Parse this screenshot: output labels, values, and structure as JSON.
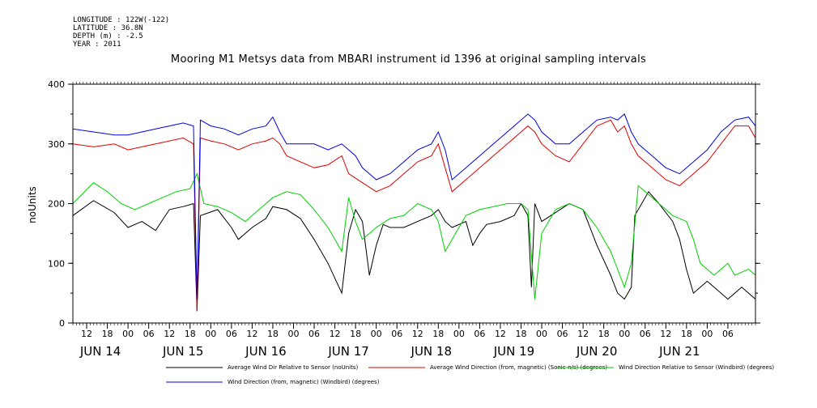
{
  "metadata": {
    "longitude": "LONGITUDE : 122W(-122)",
    "latitude": "LATITUDE : 36.8N",
    "depth": "DEPTH (m) : -2.5",
    "year": "YEAR : 2011"
  },
  "chart_data": {
    "type": "line",
    "title": "Mooring M1 Metsys data from MBARI instrument id 1396 at original sampling intervals",
    "ylabel": "noUnits",
    "xlabel": "",
    "ylim": [
      0,
      400
    ],
    "yticks": [
      0,
      100,
      200,
      300,
      400
    ],
    "xlim": [
      0,
      198
    ],
    "hour_ticks": [
      {
        "x": 4,
        "label": "12"
      },
      {
        "x": 10,
        "label": "18"
      },
      {
        "x": 16,
        "label": "00"
      },
      {
        "x": 22,
        "label": "06"
      },
      {
        "x": 28,
        "label": "12"
      },
      {
        "x": 34,
        "label": "18"
      },
      {
        "x": 40,
        "label": "00"
      },
      {
        "x": 46,
        "label": "06"
      },
      {
        "x": 52,
        "label": "12"
      },
      {
        "x": 58,
        "label": "18"
      },
      {
        "x": 64,
        "label": "00"
      },
      {
        "x": 70,
        "label": "06"
      },
      {
        "x": 76,
        "label": "12"
      },
      {
        "x": 82,
        "label": "18"
      },
      {
        "x": 88,
        "label": "00"
      },
      {
        "x": 94,
        "label": "06"
      },
      {
        "x": 100,
        "label": "12"
      },
      {
        "x": 106,
        "label": "18"
      },
      {
        "x": 112,
        "label": "00"
      },
      {
        "x": 118,
        "label": "06"
      },
      {
        "x": 124,
        "label": "12"
      },
      {
        "x": 130,
        "label": "18"
      },
      {
        "x": 136,
        "label": "00"
      },
      {
        "x": 142,
        "label": "06"
      },
      {
        "x": 148,
        "label": "12"
      },
      {
        "x": 154,
        "label": "18"
      },
      {
        "x": 160,
        "label": "00"
      },
      {
        "x": 166,
        "label": "06"
      },
      {
        "x": 172,
        "label": "12"
      },
      {
        "x": 178,
        "label": "18"
      },
      {
        "x": 184,
        "label": "00"
      },
      {
        "x": 190,
        "label": "06"
      }
    ],
    "day_ticks": [
      {
        "x": 8,
        "label": "JUN 14"
      },
      {
        "x": 32,
        "label": "JUN 15"
      },
      {
        "x": 56,
        "label": "JUN 16"
      },
      {
        "x": 80,
        "label": "JUN 17"
      },
      {
        "x": 104,
        "label": "JUN 18"
      },
      {
        "x": 128,
        "label": "JUN 19"
      },
      {
        "x": 152,
        "label": "JUN 20"
      },
      {
        "x": 176,
        "label": "JUN 21"
      }
    ],
    "series": [
      {
        "name": "Average Wind Dir Relative to Sensor (noUnits)",
        "color": "#000000",
        "points": [
          [
            0,
            180
          ],
          [
            6,
            205
          ],
          [
            12,
            185
          ],
          [
            16,
            160
          ],
          [
            20,
            170
          ],
          [
            24,
            155
          ],
          [
            28,
            190
          ],
          [
            32,
            195
          ],
          [
            35,
            200
          ],
          [
            36,
            20
          ],
          [
            37,
            180
          ],
          [
            42,
            190
          ],
          [
            46,
            160
          ],
          [
            48,
            140
          ],
          [
            52,
            160
          ],
          [
            56,
            175
          ],
          [
            58,
            195
          ],
          [
            62,
            190
          ],
          [
            66,
            175
          ],
          [
            70,
            140
          ],
          [
            74,
            100
          ],
          [
            78,
            50
          ],
          [
            80,
            150
          ],
          [
            82,
            190
          ],
          [
            84,
            170
          ],
          [
            86,
            80
          ],
          [
            88,
            130
          ],
          [
            90,
            165
          ],
          [
            92,
            160
          ],
          [
            96,
            160
          ],
          [
            100,
            170
          ],
          [
            104,
            180
          ],
          [
            106,
            190
          ],
          [
            108,
            170
          ],
          [
            110,
            160
          ],
          [
            114,
            170
          ],
          [
            116,
            130
          ],
          [
            118,
            150
          ],
          [
            120,
            165
          ],
          [
            124,
            170
          ],
          [
            128,
            180
          ],
          [
            130,
            200
          ],
          [
            132,
            180
          ],
          [
            133,
            60
          ],
          [
            134,
            200
          ],
          [
            136,
            170
          ],
          [
            140,
            185
          ],
          [
            144,
            200
          ],
          [
            148,
            190
          ],
          [
            152,
            130
          ],
          [
            156,
            80
          ],
          [
            158,
            50
          ],
          [
            160,
            40
          ],
          [
            162,
            60
          ],
          [
            163,
            180
          ],
          [
            165,
            200
          ],
          [
            167,
            220
          ],
          [
            170,
            200
          ],
          [
            174,
            170
          ],
          [
            176,
            140
          ],
          [
            178,
            90
          ],
          [
            180,
            50
          ],
          [
            182,
            60
          ],
          [
            184,
            70
          ],
          [
            186,
            60
          ],
          [
            188,
            50
          ],
          [
            190,
            40
          ],
          [
            192,
            50
          ],
          [
            194,
            60
          ],
          [
            196,
            50
          ],
          [
            198,
            40
          ]
        ]
      },
      {
        "name": "Average Wind Direction (from, magnetic) (Sonic-n/s) (degrees)",
        "color": "#e00000",
        "points": [
          [
            0,
            300
          ],
          [
            6,
            295
          ],
          [
            12,
            300
          ],
          [
            16,
            290
          ],
          [
            20,
            295
          ],
          [
            24,
            300
          ],
          [
            28,
            305
          ],
          [
            32,
            310
          ],
          [
            35,
            300
          ],
          [
            36,
            20
          ],
          [
            37,
            310
          ],
          [
            40,
            305
          ],
          [
            44,
            300
          ],
          [
            48,
            290
          ],
          [
            52,
            300
          ],
          [
            56,
            305
          ],
          [
            58,
            310
          ],
          [
            60,
            300
          ],
          [
            62,
            280
          ],
          [
            66,
            270
          ],
          [
            70,
            260
          ],
          [
            74,
            265
          ],
          [
            78,
            280
          ],
          [
            80,
            250
          ],
          [
            84,
            235
          ],
          [
            88,
            220
          ],
          [
            92,
            230
          ],
          [
            96,
            250
          ],
          [
            100,
            270
          ],
          [
            104,
            280
          ],
          [
            106,
            300
          ],
          [
            108,
            260
          ],
          [
            110,
            220
          ],
          [
            114,
            240
          ],
          [
            118,
            260
          ],
          [
            122,
            280
          ],
          [
            126,
            300
          ],
          [
            130,
            320
          ],
          [
            132,
            330
          ],
          [
            134,
            320
          ],
          [
            136,
            300
          ],
          [
            140,
            280
          ],
          [
            144,
            270
          ],
          [
            148,
            300
          ],
          [
            152,
            330
          ],
          [
            156,
            340
          ],
          [
            158,
            320
          ],
          [
            160,
            330
          ],
          [
            162,
            300
          ],
          [
            164,
            280
          ],
          [
            168,
            260
          ],
          [
            172,
            240
          ],
          [
            176,
            230
          ],
          [
            180,
            250
          ],
          [
            184,
            270
          ],
          [
            188,
            300
          ],
          [
            192,
            330
          ],
          [
            196,
            330
          ],
          [
            198,
            310
          ]
        ]
      },
      {
        "name": "Wind Direction Relative to Sensor (Windbird) (degrees)",
        "color": "#00d000",
        "points": [
          [
            0,
            200
          ],
          [
            6,
            235
          ],
          [
            10,
            220
          ],
          [
            14,
            200
          ],
          [
            18,
            190
          ],
          [
            22,
            200
          ],
          [
            26,
            210
          ],
          [
            30,
            220
          ],
          [
            34,
            225
          ],
          [
            36,
            250
          ],
          [
            38,
            200
          ],
          [
            42,
            195
          ],
          [
            46,
            185
          ],
          [
            50,
            170
          ],
          [
            54,
            190
          ],
          [
            58,
            210
          ],
          [
            62,
            220
          ],
          [
            66,
            215
          ],
          [
            70,
            190
          ],
          [
            74,
            160
          ],
          [
            78,
            120
          ],
          [
            80,
            210
          ],
          [
            82,
            170
          ],
          [
            84,
            140
          ],
          [
            86,
            150
          ],
          [
            88,
            160
          ],
          [
            92,
            175
          ],
          [
            96,
            180
          ],
          [
            100,
            200
          ],
          [
            104,
            190
          ],
          [
            106,
            170
          ],
          [
            108,
            120
          ],
          [
            110,
            140
          ],
          [
            114,
            180
          ],
          [
            118,
            190
          ],
          [
            122,
            195
          ],
          [
            126,
            200
          ],
          [
            130,
            200
          ],
          [
            132,
            190
          ],
          [
            134,
            40
          ],
          [
            136,
            150
          ],
          [
            140,
            190
          ],
          [
            144,
            200
          ],
          [
            148,
            190
          ],
          [
            152,
            160
          ],
          [
            156,
            120
          ],
          [
            158,
            90
          ],
          [
            160,
            60
          ],
          [
            162,
            100
          ],
          [
            164,
            230
          ],
          [
            166,
            220
          ],
          [
            170,
            200
          ],
          [
            174,
            180
          ],
          [
            178,
            170
          ],
          [
            180,
            140
          ],
          [
            182,
            100
          ],
          [
            184,
            90
          ],
          [
            186,
            80
          ],
          [
            188,
            90
          ],
          [
            190,
            100
          ],
          [
            192,
            80
          ],
          [
            196,
            90
          ],
          [
            198,
            80
          ]
        ]
      },
      {
        "name": "Wind Direction (from, magnetic) (Windbird) (degrees)",
        "color": "#0000e0",
        "points": [
          [
            0,
            325
          ],
          [
            6,
            320
          ],
          [
            12,
            315
          ],
          [
            16,
            315
          ],
          [
            20,
            320
          ],
          [
            24,
            325
          ],
          [
            28,
            330
          ],
          [
            32,
            335
          ],
          [
            35,
            330
          ],
          [
            36,
            40
          ],
          [
            37,
            340
          ],
          [
            40,
            330
          ],
          [
            44,
            325
          ],
          [
            48,
            315
          ],
          [
            52,
            325
          ],
          [
            56,
            330
          ],
          [
            58,
            345
          ],
          [
            60,
            320
          ],
          [
            62,
            300
          ],
          [
            66,
            300
          ],
          [
            70,
            300
          ],
          [
            74,
            290
          ],
          [
            78,
            300
          ],
          [
            80,
            290
          ],
          [
            82,
            280
          ],
          [
            84,
            260
          ],
          [
            86,
            250
          ],
          [
            88,
            240
          ],
          [
            92,
            250
          ],
          [
            96,
            270
          ],
          [
            100,
            290
          ],
          [
            104,
            300
          ],
          [
            106,
            320
          ],
          [
            108,
            290
          ],
          [
            110,
            240
          ],
          [
            114,
            260
          ],
          [
            118,
            280
          ],
          [
            122,
            300
          ],
          [
            126,
            320
          ],
          [
            130,
            340
          ],
          [
            132,
            350
          ],
          [
            134,
            340
          ],
          [
            136,
            320
          ],
          [
            140,
            300
          ],
          [
            144,
            300
          ],
          [
            148,
            320
          ],
          [
            152,
            340
          ],
          [
            156,
            345
          ],
          [
            158,
            340
          ],
          [
            160,
            350
          ],
          [
            162,
            320
          ],
          [
            164,
            300
          ],
          [
            168,
            280
          ],
          [
            172,
            260
          ],
          [
            176,
            250
          ],
          [
            180,
            270
          ],
          [
            184,
            290
          ],
          [
            188,
            320
          ],
          [
            192,
            340
          ],
          [
            196,
            345
          ],
          [
            198,
            330
          ]
        ]
      }
    ]
  },
  "legend": {
    "row1": [
      {
        "label": "Average Wind Dir Relative to Sensor (noUnits)",
        "color": "#000000"
      },
      {
        "label": "Average Wind Direction (from, magnetic) (Sonic-n/s) (degrees)",
        "color": "#e00000"
      },
      {
        "label": "Wind Direction Relative to Sensor (Windbird) (degrees)",
        "color": "#00d000"
      }
    ],
    "row2": [
      {
        "label": "Wind Direction (from, magnetic) (Windbird) (degrees)",
        "color": "#0000e0"
      }
    ]
  }
}
